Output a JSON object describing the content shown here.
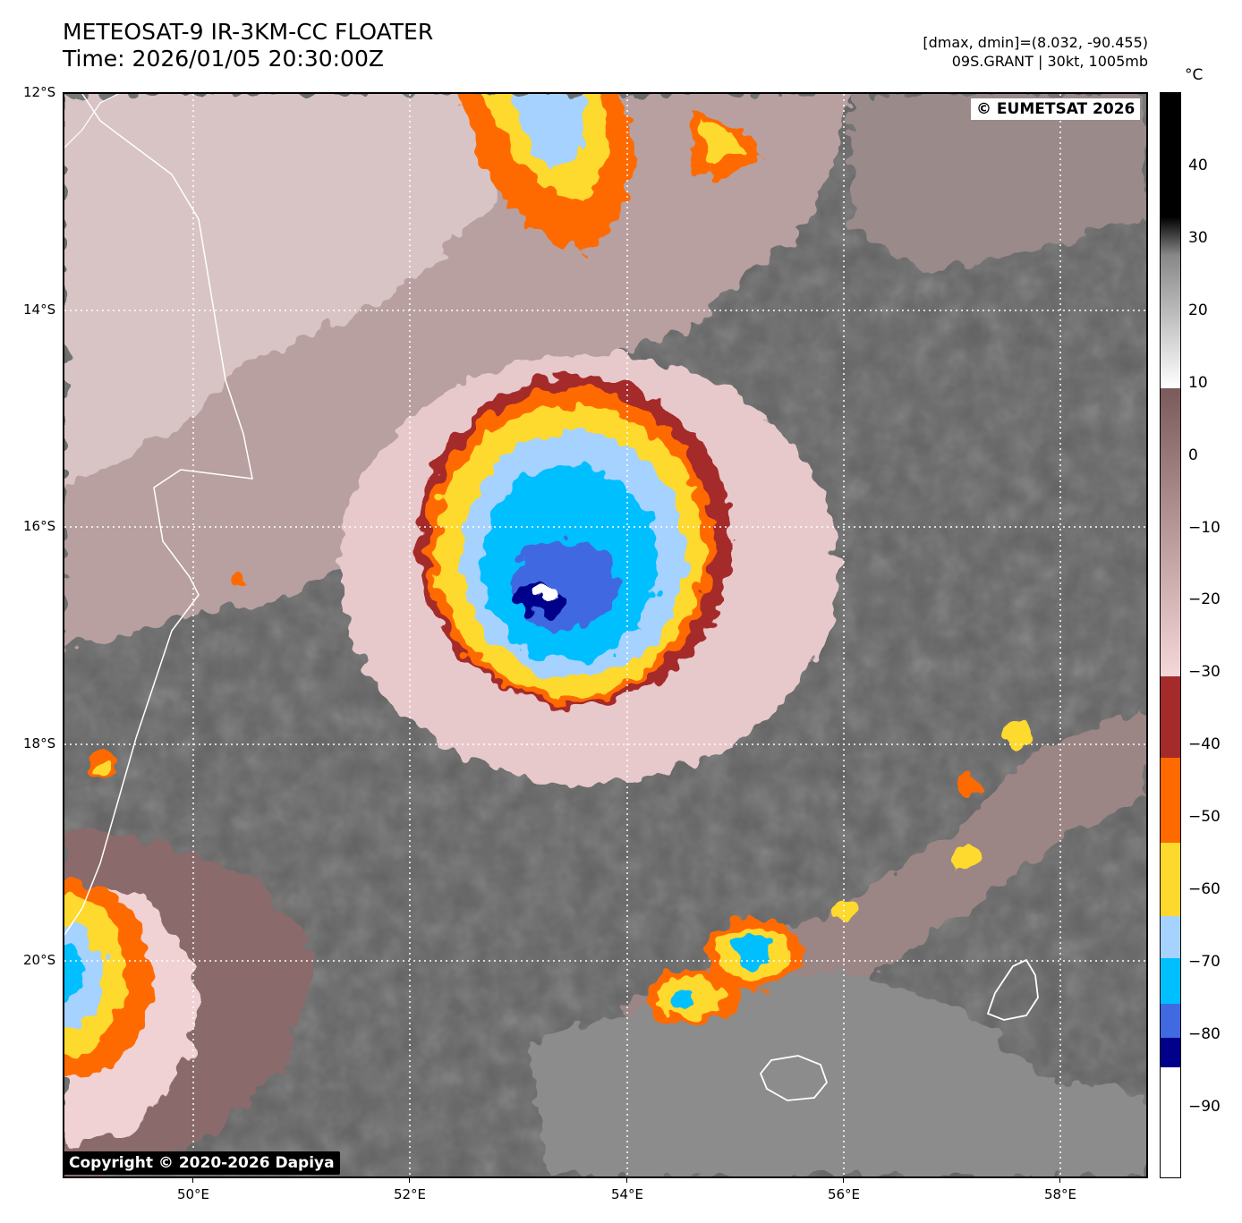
{
  "header": {
    "title": "METEOSAT-9 IR-3KM-CC FLOATER",
    "time": "Time: 2026/01/05 20:30:00Z",
    "range": "[dmax, dmin]=(8.032, -90.455)",
    "storm": "09S.GRANT | 30kt, 1005mb"
  },
  "map": {
    "lat_labels": [
      "12°S",
      "14°S",
      "16°S",
      "18°S",
      "20°S"
    ],
    "lon_labels": [
      "50°E",
      "52°E",
      "54°E",
      "56°E",
      "58°E"
    ],
    "credit_top": "© EUMETSAT 2026",
    "credit_bottom": "Copyright © 2020-2026 Dapiya"
  },
  "colorbar": {
    "unit": "°C",
    "ticks": [
      "40",
      "30",
      "20",
      "10",
      "0",
      "−10",
      "−20",
      "−30",
      "−40",
      "−50",
      "−60",
      "−70",
      "−80",
      "−90"
    ],
    "colors": {
      "white": "#ffffff",
      "navy": "#00008b",
      "royal": "#4169e1",
      "sky": "#00bfff",
      "lightblue": "#a6d2ff",
      "gold": "#fed92d",
      "orange": "#ff6a00",
      "darkred": "#a52a2a",
      "pink": "#f6d7d9",
      "brown": "#7a5a5a"
    }
  }
}
